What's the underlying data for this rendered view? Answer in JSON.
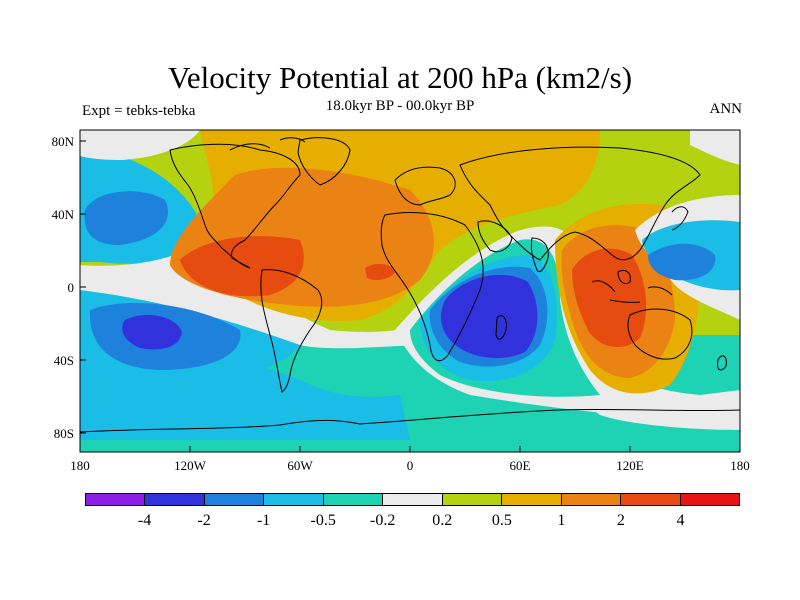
{
  "title": "Velocity Potential at 200 hPa (km2/s)",
  "left_label": "Expt = tebks-tebka",
  "center_label": "18.0kyr BP - 00.0kyr BP",
  "right_label": "ANN",
  "y_ticks": [
    "80N",
    "40N",
    "0",
    "40S",
    "80S"
  ],
  "x_ticks": [
    "180",
    "120W",
    "60W",
    "0",
    "60E",
    "120E",
    "180"
  ],
  "colorbar": {
    "colors": [
      "#8c1ee6",
      "#3232dc",
      "#1e82dc",
      "#19bde6",
      "#1ed2b4",
      "#ebebeb",
      "#b4d20f",
      "#e6af00",
      "#eb8214",
      "#e64b0f",
      "#e61414"
    ],
    "labels": [
      "-4",
      "-2",
      "-1",
      "-0.5",
      "-0.2",
      "0.2",
      "0.5",
      "1",
      "2",
      "4"
    ]
  },
  "map_colors": {
    "violet": "#8c1ee6",
    "blue": "#3232dc",
    "mid_blue": "#1e82dc",
    "cyan": "#19bde6",
    "teal": "#1ed2b4",
    "grey": "#ebebeb",
    "lime": "#b4d20f",
    "gold": "#e6af00",
    "orange": "#eb8214",
    "red_orange": "#e64b0f",
    "red": "#e61414"
  }
}
